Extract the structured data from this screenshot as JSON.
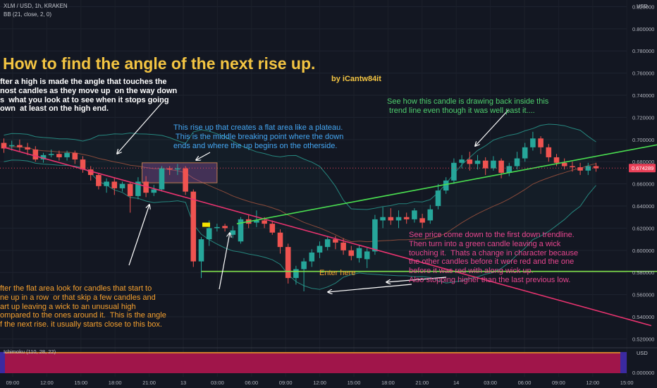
{
  "header": {
    "symbol": "XLM / USD, 1h, KRAKEN",
    "indicator": "BB (21, close, 2, 0)"
  },
  "currency_label": "USD",
  "annotations": {
    "title": "How to find the angle of the next rise up.",
    "author": "by iCantw84it",
    "note_top_left": "fter a high is made the angle that touches the\nnost candles as they move up  on the way down\ns  what you look at to see when it stops going\nown  at least on the high end.",
    "note_plateau": "This rise up that creates a flat area like a plateau.\n This is the middle breaking point where the down\nends and where the up begins on the otherside.",
    "note_candle": "See how this candle is drawing back inside this\n trend line even though it was well past it....",
    "note_bottom_left": "fter the flat area look for candles that start to\nne up in a row  or that skip a few candles and\nart up leaving a wick to an unusual high\nompared to the ones around it.  This is the angle\nf the next rise. it usually starts close to this box.",
    "enter_here": "Enter here",
    "note_price": "See price come down to the first down trendline.\nThen turn into a green candle leaving a wick\ntouching it.  Thats a change in character because\nthe other candles before it were red and the one\nbefore it was red with along wick up.\nAlso stopping higher than the last previous low."
  },
  "lower_pane": {
    "label": "Ichimoku (110, 28, 22)"
  },
  "chart_data": {
    "type": "candlestick",
    "symbol": "XLM / USD",
    "interval": "1h",
    "exchange": "KRAKEN",
    "price_axis": {
      "ticks": [
        "0.820000",
        "0.800000",
        "0.780000",
        "0.760000",
        "0.740000",
        "0.720000",
        "0.700000",
        "0.680000",
        "0.660000",
        "0.640000",
        "0.620000",
        "0.600000",
        "0.580000",
        "0.560000",
        "0.540000",
        "0.520000"
      ],
      "range": [
        0.512,
        0.826
      ]
    },
    "last_price": "0.674289",
    "lower_axis_ticks": [
      "0.000000"
    ],
    "time_axis": [
      "09:00",
      "12:00",
      "15:00",
      "18:00",
      "21:00",
      "13",
      "03:00",
      "06:00",
      "09:00",
      "12:00",
      "15:00",
      "18:00",
      "21:00",
      "14",
      "03:00",
      "06:00",
      "09:00",
      "12:00",
      "15:00"
    ],
    "candles": [
      [
        0.697,
        0.692,
        0.701,
        0.688
      ],
      [
        0.694,
        0.695,
        0.699,
        0.69
      ],
      [
        0.695,
        0.693,
        0.7,
        0.689
      ],
      [
        0.693,
        0.691,
        0.697,
        0.686
      ],
      [
        0.691,
        0.682,
        0.694,
        0.68
      ],
      [
        0.682,
        0.686,
        0.688,
        0.679
      ],
      [
        0.686,
        0.687,
        0.691,
        0.684
      ],
      [
        0.687,
        0.684,
        0.69,
        0.681
      ],
      [
        0.684,
        0.688,
        0.69,
        0.681
      ],
      [
        0.688,
        0.682,
        0.69,
        0.678
      ],
      [
        0.682,
        0.673,
        0.685,
        0.67
      ],
      [
        0.673,
        0.668,
        0.676,
        0.663
      ],
      [
        0.668,
        0.658,
        0.67,
        0.655
      ],
      [
        0.658,
        0.662,
        0.665,
        0.652
      ],
      [
        0.662,
        0.656,
        0.666,
        0.65
      ],
      [
        0.656,
        0.66,
        0.662,
        0.653
      ],
      [
        0.66,
        0.649,
        0.661,
        0.634
      ],
      [
        0.649,
        0.662,
        0.666,
        0.646
      ],
      [
        0.662,
        0.652,
        0.667,
        0.648
      ],
      [
        0.652,
        0.655,
        0.659,
        0.649
      ],
      [
        0.655,
        0.674,
        0.676,
        0.653
      ],
      [
        0.674,
        0.673,
        0.676,
        0.668
      ],
      [
        0.673,
        0.674,
        0.678,
        0.668
      ],
      [
        0.674,
        0.653,
        0.676,
        0.65
      ],
      [
        0.653,
        0.59,
        0.655,
        0.585
      ],
      [
        0.59,
        0.61,
        0.612,
        0.575
      ],
      [
        0.61,
        0.62,
        0.627,
        0.604
      ],
      [
        0.62,
        0.621,
        0.624,
        0.617
      ],
      [
        0.622,
        0.62,
        0.624,
        0.617
      ],
      [
        0.614,
        0.618,
        0.622,
        0.611
      ],
      [
        0.608,
        0.628,
        0.63,
        0.606
      ],
      [
        0.628,
        0.624,
        0.632,
        0.62
      ],
      [
        0.625,
        0.627,
        0.636,
        0.621
      ],
      [
        0.627,
        0.624,
        0.63,
        0.62
      ],
      [
        0.624,
        0.616,
        0.627,
        0.614
      ],
      [
        0.616,
        0.603,
        0.619,
        0.597
      ],
      [
        0.603,
        0.575,
        0.606,
        0.57
      ],
      [
        0.575,
        0.583,
        0.586,
        0.569
      ],
      [
        0.583,
        0.59,
        0.593,
        0.563
      ],
      [
        0.59,
        0.598,
        0.601,
        0.585
      ],
      [
        0.598,
        0.604,
        0.608,
        0.593
      ],
      [
        0.603,
        0.61,
        0.613,
        0.6
      ],
      [
        0.61,
        0.607,
        0.613,
        0.601
      ],
      [
        0.607,
        0.6,
        0.611,
        0.596
      ],
      [
        0.6,
        0.595,
        0.604,
        0.591
      ],
      [
        0.593,
        0.602,
        0.605,
        0.589
      ],
      [
        0.592,
        0.599,
        0.602,
        0.584
      ],
      [
        0.599,
        0.628,
        0.632,
        0.596
      ],
      [
        0.627,
        0.63,
        0.639,
        0.62
      ],
      [
        0.63,
        0.627,
        0.638,
        0.623
      ],
      [
        0.627,
        0.63,
        0.636,
        0.62
      ],
      [
        0.63,
        0.628,
        0.634,
        0.624
      ],
      [
        0.628,
        0.636,
        0.638,
        0.625
      ],
      [
        0.629,
        0.625,
        0.633,
        0.62
      ],
      [
        0.627,
        0.637,
        0.641,
        0.624
      ],
      [
        0.64,
        0.654,
        0.66,
        0.637
      ],
      [
        0.654,
        0.663,
        0.666,
        0.651
      ],
      [
        0.663,
        0.679,
        0.683,
        0.66
      ],
      [
        0.679,
        0.682,
        0.686,
        0.674
      ],
      [
        0.682,
        0.678,
        0.689,
        0.672
      ],
      [
        0.678,
        0.681,
        0.686,
        0.673
      ],
      [
        0.681,
        0.674,
        0.684,
        0.668
      ],
      [
        0.674,
        0.681,
        0.685,
        0.672
      ],
      [
        0.681,
        0.67,
        0.683,
        0.665
      ],
      [
        0.67,
        0.676,
        0.679,
        0.667
      ],
      [
        0.676,
        0.683,
        0.689,
        0.673
      ],
      [
        0.683,
        0.693,
        0.697,
        0.68
      ],
      [
        0.693,
        0.701,
        0.707,
        0.69
      ],
      [
        0.701,
        0.693,
        0.703,
        0.687
      ],
      [
        0.693,
        0.684,
        0.696,
        0.68
      ],
      [
        0.684,
        0.679,
        0.687,
        0.676
      ],
      [
        0.679,
        0.676,
        0.683,
        0.673
      ],
      [
        0.676,
        0.675,
        0.68,
        0.671
      ],
      [
        0.675,
        0.672,
        0.679,
        0.668
      ],
      [
        0.672,
        0.676,
        0.679,
        0.668
      ],
      [
        0.676,
        0.674,
        0.679,
        0.671
      ]
    ],
    "trendlines": [
      {
        "points": [
          [
            0.0,
            0.693
          ],
          [
            82.0,
            0.532
          ]
        ]
      },
      {
        "points": [
          [
            29.5,
            0.624
          ],
          [
            102.0,
            0.721
          ]
        ]
      },
      {
        "points": [
          [
            25.0,
            0.581
          ],
          [
            102.0,
            0.581
          ]
        ]
      }
    ],
    "plateau_box": {
      "x": [
        17.5,
        27.0
      ],
      "y": [
        0.661,
        0.679
      ]
    }
  },
  "colors": {
    "bull": "#26a69a",
    "bear": "#ef5350",
    "title": "#f4c542",
    "uptrend": "#4ade50",
    "downtrend": "#e8336f",
    "support": "#7ee04a",
    "note_blue": "#44a6f2",
    "note_green": "#4fd06e",
    "note_pink": "#e8468f",
    "note_orange": "#f5a02e",
    "last_price_bg": "#e94058"
  }
}
